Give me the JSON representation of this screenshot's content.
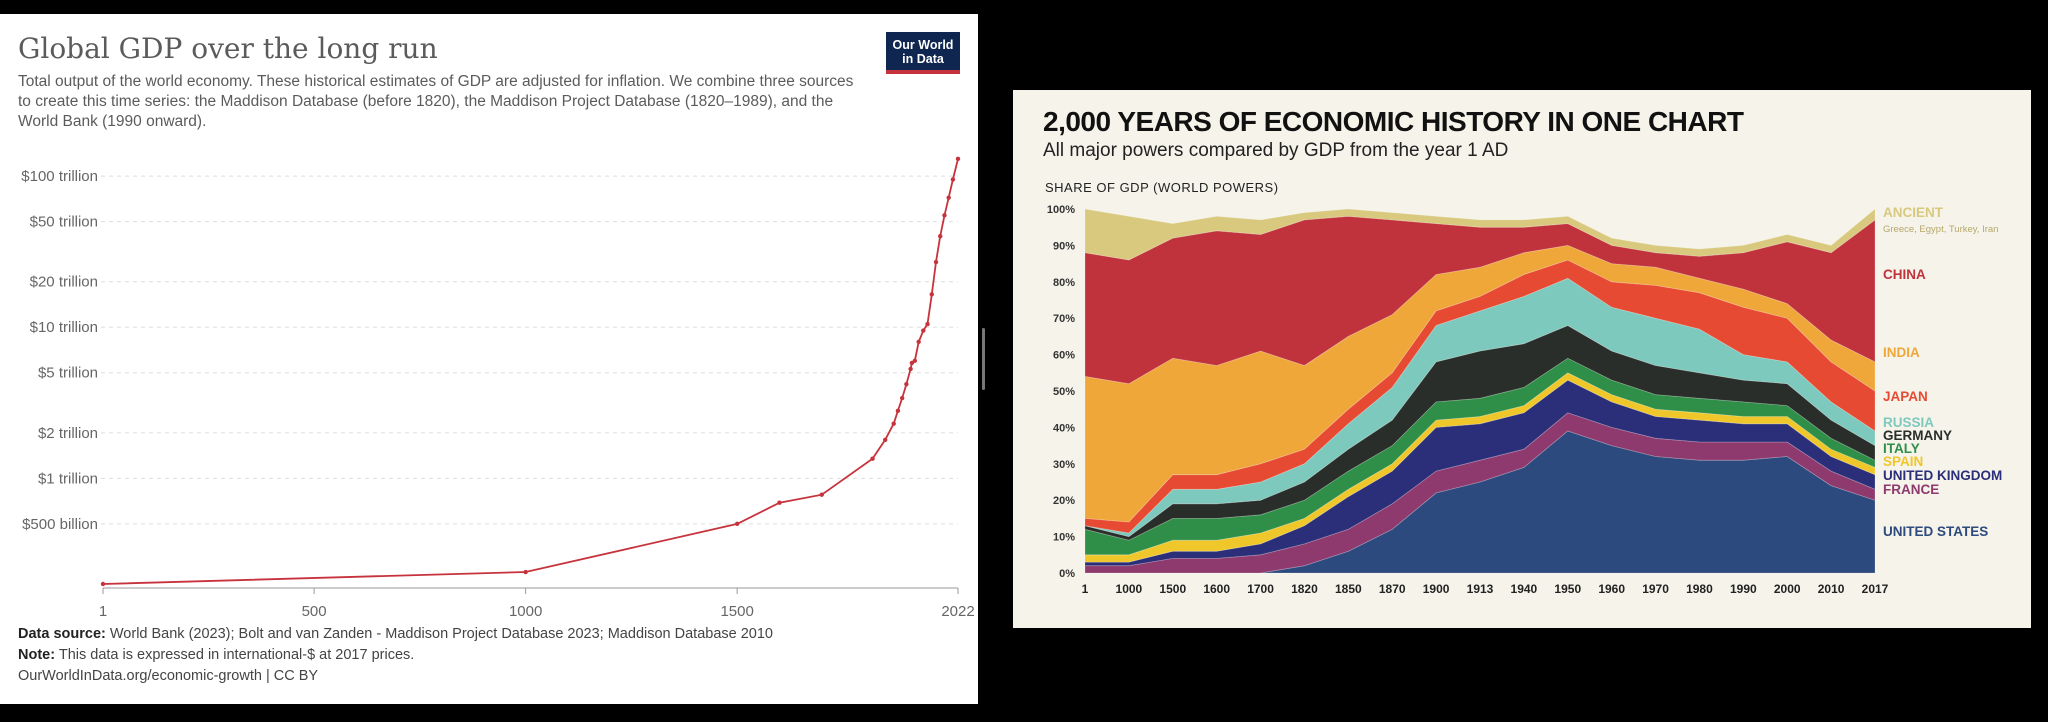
{
  "left": {
    "title": "Global GDP over the long run",
    "subtitle": "Total output of the world economy. These historical estimates of GDP are adjusted for inflation. We combine three sources to create this time series: the Maddison Database (before 1820), the Maddison Project Database (1820–1989), and the World Bank (1990 onward).",
    "logo_line1": "Our World",
    "logo_line2": "in Data",
    "data_source_label": "Data source:",
    "data_source": "World Bank (2023); Bolt and van Zanden - Maddison Project Database 2023; Maddison Database 2010",
    "note_label": "Note:",
    "note": "This data is expressed in international-$ at 2017 prices.",
    "url": "OurWorldInData.org/economic-growth | CC BY"
  },
  "right": {
    "title": "2,000 YEARS OF ECONOMIC HISTORY IN ONE CHART",
    "subtitle": "All major powers compared by GDP from the year 1 AD",
    "axis_title": "SHARE OF GDP (WORLD POWERS)",
    "ancient_note": "Greece, Egypt, Turkey, Iran"
  },
  "chart_data": [
    {
      "type": "line",
      "title": "Global GDP over the long run",
      "scale": "log",
      "color": "#c7333c",
      "x": [
        1,
        1000,
        1500,
        1600,
        1700,
        1820,
        1850,
        1870,
        1880,
        1890,
        1900,
        1910,
        1913,
        1920,
        1929,
        1940,
        1950,
        1960,
        1970,
        1980,
        1990,
        2000,
        2010,
        2022
      ],
      "values_trillion": [
        0.2,
        0.24,
        0.5,
        0.69,
        0.78,
        1.35,
        1.8,
        2.3,
        2.8,
        3.4,
        4.2,
        5.3,
        5.8,
        6.0,
        8.0,
        9.5,
        10.5,
        16.5,
        27,
        40,
        55,
        72,
        95,
        130
      ],
      "yticks": [
        {
          "v": 100,
          "label": "$100 trillion"
        },
        {
          "v": 50,
          "label": "$50 trillion"
        },
        {
          "v": 20,
          "label": "$20 trillion"
        },
        {
          "v": 10,
          "label": "$10 trillion"
        },
        {
          "v": 5,
          "label": "$5 trillion"
        },
        {
          "v": 2,
          "label": "$2 trillion"
        },
        {
          "v": 1,
          "label": "$1 trillion"
        },
        {
          "v": 0.5,
          "label": "$500 billion"
        }
      ],
      "xticks": [
        {
          "v": 1,
          "label": "1"
        },
        {
          "v": 500,
          "label": "500"
        },
        {
          "v": 1000,
          "label": "1000"
        },
        {
          "v": 1500,
          "label": "1500"
        },
        {
          "v": 2022,
          "label": "2022"
        }
      ],
      "ylim": [
        0.2,
        140
      ],
      "xlim": [
        1,
        2022
      ],
      "grid": true
    },
    {
      "type": "area",
      "stacked": true,
      "title": "2,000 YEARS OF ECONOMIC HISTORY IN ONE CHART",
      "ylabel": "SHARE OF GDP (WORLD POWERS)",
      "categories": [
        "1",
        "1000",
        "1500",
        "1600",
        "1700",
        "1820",
        "1850",
        "1870",
        "1900",
        "1913",
        "1940",
        "1950",
        "1960",
        "1970",
        "1980",
        "1990",
        "2000",
        "2010",
        "2017"
      ],
      "yticks": [
        "0%",
        "10%",
        "20%",
        "30%",
        "40%",
        "50%",
        "60%",
        "70%",
        "80%",
        "90%",
        "100%"
      ],
      "series": [
        {
          "name": "UNITED STATES",
          "color": "#2c4a7e",
          "values": [
            0,
            0,
            0,
            0,
            0,
            2,
            6,
            12,
            22,
            25,
            29,
            39,
            35,
            32,
            31,
            31,
            32,
            24,
            20
          ]
        },
        {
          "name": "FRANCE",
          "color": "#8e3a6e",
          "values": [
            2,
            2,
            4,
            4,
            5,
            6,
            6,
            7,
            6,
            6,
            5,
            5,
            5,
            5,
            5,
            5,
            4,
            4,
            3
          ]
        },
        {
          "name": "UNITED KINGDOM",
          "color": "#2b2f7a",
          "values": [
            1,
            1,
            2,
            2,
            3,
            5,
            9,
            9,
            12,
            10,
            10,
            9,
            7,
            6,
            6,
            5,
            5,
            4,
            4
          ]
        },
        {
          "name": "SPAIN",
          "color": "#f0c72a",
          "values": [
            2,
            2,
            3,
            3,
            3,
            2,
            2,
            2,
            2,
            2,
            2,
            2,
            2,
            2,
            2,
            2,
            2,
            2,
            2
          ]
        },
        {
          "name": "ITALY",
          "color": "#2f8f48",
          "values": [
            7,
            4,
            6,
            6,
            5,
            5,
            5,
            5,
            5,
            5,
            5,
            4,
            4,
            4,
            4,
            4,
            3,
            3,
            2
          ]
        },
        {
          "name": "GERMANY",
          "color": "#2a2e2a",
          "values": [
            1,
            1,
            4,
            4,
            4,
            5,
            6,
            7,
            11,
            13,
            12,
            9,
            8,
            8,
            7,
            6,
            6,
            5,
            4
          ]
        },
        {
          "name": "RUSSIA",
          "color": "#7ec9bd",
          "values": [
            0,
            1,
            4,
            4,
            5,
            5,
            7,
            9,
            10,
            11,
            13,
            13,
            12,
            13,
            12,
            7,
            6,
            5,
            4
          ]
        },
        {
          "name": "JAPAN",
          "color": "#e74a32",
          "values": [
            2,
            3,
            4,
            4,
            5,
            4,
            4,
            4,
            4,
            4,
            6,
            5,
            7,
            9,
            10,
            13,
            12,
            11,
            11
          ]
        },
        {
          "name": "INDIA",
          "color": "#f0a73a",
          "values": [
            39,
            38,
            32,
            30,
            31,
            23,
            20,
            16,
            10,
            8,
            6,
            4,
            5,
            5,
            4,
            5,
            4,
            6,
            8
          ]
        },
        {
          "name": "CHINA",
          "color": "#c0333d",
          "values": [
            34,
            34,
            33,
            37,
            32,
            40,
            33,
            26,
            14,
            11,
            7,
            6,
            5,
            4,
            6,
            10,
            17,
            24,
            39
          ]
        },
        {
          "name": "ANCIENT",
          "color": "#d9c97e",
          "values": [
            12,
            12,
            4,
            4,
            4,
            2,
            2,
            2,
            2,
            2,
            2,
            2,
            2,
            2,
            2,
            2,
            2,
            2,
            3
          ]
        }
      ],
      "legend_placement": "right",
      "ylim": [
        0,
        100
      ]
    }
  ]
}
